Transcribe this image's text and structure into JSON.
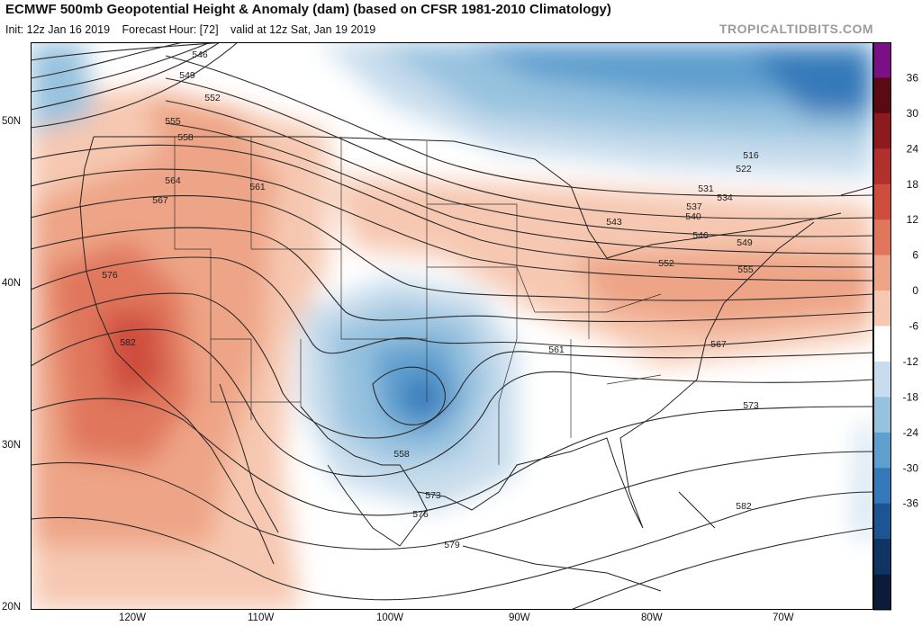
{
  "header": {
    "title": "ECMWF 500mb Geopotential Height & Anomaly (dam) (based on CFSR 1981-2010 Climatology)",
    "init": "Init: 12z Jan 16 2019",
    "forecast_hour": "Forecast Hour: [72]",
    "valid": "valid at 12z Sat, Jan 19 2019",
    "watermark": "TROPICALTIDBITS.COM"
  },
  "colorbar": {
    "ticks": [
      "36",
      "30",
      "24",
      "18",
      "12",
      "6",
      "0",
      "-6",
      "-12",
      "-18",
      "-24",
      "-30",
      "-36"
    ],
    "colors": [
      "#7a0f86",
      "#5c0a12",
      "#8c1a1e",
      "#b2302c",
      "#cf4d3d",
      "#e0775d",
      "#eea486",
      "#f6c8b1",
      "#ffffff",
      "#c7dcec",
      "#97c2df",
      "#5f9fcf",
      "#3479b9",
      "#1d5494",
      "#0f3565",
      "#0a1c3a"
    ]
  },
  "axes": {
    "lat_labels": [
      "50N",
      "40N",
      "30N",
      "20N"
    ],
    "lon_labels": [
      "120W",
      "110W",
      "100W",
      "90W",
      "80W",
      "70W"
    ]
  },
  "contour_labels": [
    "546",
    "549",
    "552",
    "555",
    "558",
    "564",
    "567",
    "561",
    "576",
    "582",
    "516",
    "522",
    "531",
    "534",
    "537",
    "540",
    "543",
    "546",
    "549",
    "552",
    "555",
    "561",
    "567",
    "573",
    "558",
    "573",
    "576",
    "579",
    "582"
  ]
}
